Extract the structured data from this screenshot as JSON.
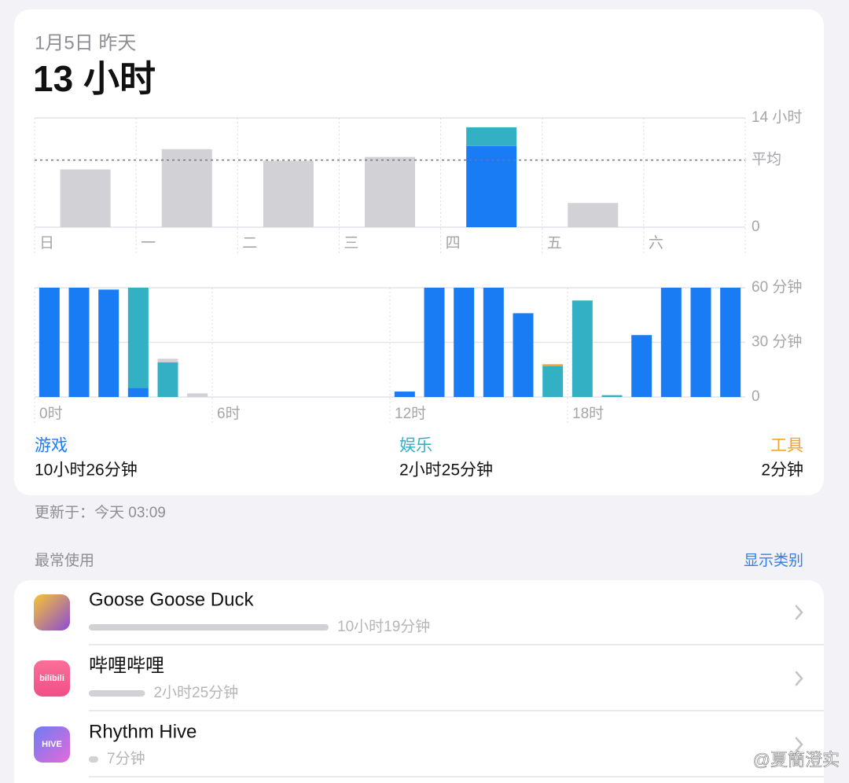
{
  "header": {
    "date": "1月5日 昨天",
    "total": "13 小时"
  },
  "chart_data": [
    {
      "type": "bar",
      "stacked": true,
      "categories": [
        "日",
        "一",
        "二",
        "三",
        "四",
        "五",
        "六"
      ],
      "series": [
        {
          "color": "#1a7cf5",
          "values": [
            null,
            null,
            null,
            null,
            10.4,
            null,
            null
          ]
        },
        {
          "color": "#33b0c4",
          "values": [
            null,
            null,
            null,
            null,
            2.4,
            null,
            null
          ]
        },
        {
          "color": "#d1d1d6",
          "values": [
            7.4,
            10,
            8.5,
            9,
            null,
            3.1,
            null
          ]
        }
      ],
      "ylim": [
        0,
        14
      ],
      "yticks": [
        0,
        {
          "value": 14,
          "label": "14 小时"
        }
      ],
      "average": {
        "value": 8.6,
        "label": "平均"
      },
      "grid": true
    },
    {
      "type": "bar",
      "stacked": true,
      "categories": [
        "0时",
        null,
        null,
        null,
        null,
        null,
        "6时",
        null,
        null,
        null,
        null,
        null,
        "12时",
        null,
        null,
        null,
        null,
        null,
        "18时",
        null,
        null,
        null,
        null,
        null
      ],
      "series": [
        {
          "name": "游戏",
          "total": "10小时26分钟",
          "color": "#1a7cf5",
          "values": [
            60,
            60,
            59,
            5,
            0,
            0,
            0,
            0,
            0,
            0,
            0,
            0,
            3,
            60,
            60,
            60,
            46,
            0,
            0,
            0,
            34,
            60,
            60,
            60
          ]
        },
        {
          "name": "娱乐",
          "total": "2小时25分钟",
          "color": "#33b0c4",
          "values": [
            0,
            0,
            0,
            55,
            19,
            0,
            0,
            0,
            0,
            0,
            0,
            0,
            0,
            0,
            0,
            0,
            0,
            17,
            53,
            1,
            0,
            0,
            0,
            0
          ]
        },
        {
          "name": "工具",
          "total": "2分钟",
          "color": "#f0a23b",
          "values": [
            0,
            0,
            0,
            0,
            0,
            0,
            0,
            0,
            0,
            0,
            0,
            0,
            0,
            0,
            0,
            0,
            0,
            1,
            0,
            0,
            0,
            0,
            0,
            0
          ]
        },
        {
          "color": "#d1d1d6",
          "values": [
            0,
            0,
            0,
            0,
            2,
            2,
            0,
            0,
            0,
            0,
            0,
            0,
            0,
            0,
            0,
            0,
            0,
            0,
            0,
            0,
            0,
            0,
            0,
            0
          ]
        }
      ],
      "ylim": [
        0,
        60
      ],
      "yticks": [
        0,
        {
          "value": 30,
          "label": "30 分钟"
        },
        {
          "value": 60,
          "label": "60 分钟"
        }
      ],
      "grid": true
    }
  ],
  "updated": "更新于：今天 03:09",
  "most_used": {
    "title": "最常使用",
    "action": "显示类别",
    "apps": [
      {
        "name": "Goose Goose Duck",
        "time": "10小时19分钟",
        "minutes": 619
      },
      {
        "name": "哔哩哔哩",
        "time": "2小时25分钟",
        "minutes": 145,
        "icon_text": "bilibili"
      },
      {
        "name": "Rhythm Hive",
        "time": "7分钟",
        "minutes": 7,
        "icon_text": "HIVE"
      }
    ]
  },
  "watermark": "@夏簡澄实"
}
